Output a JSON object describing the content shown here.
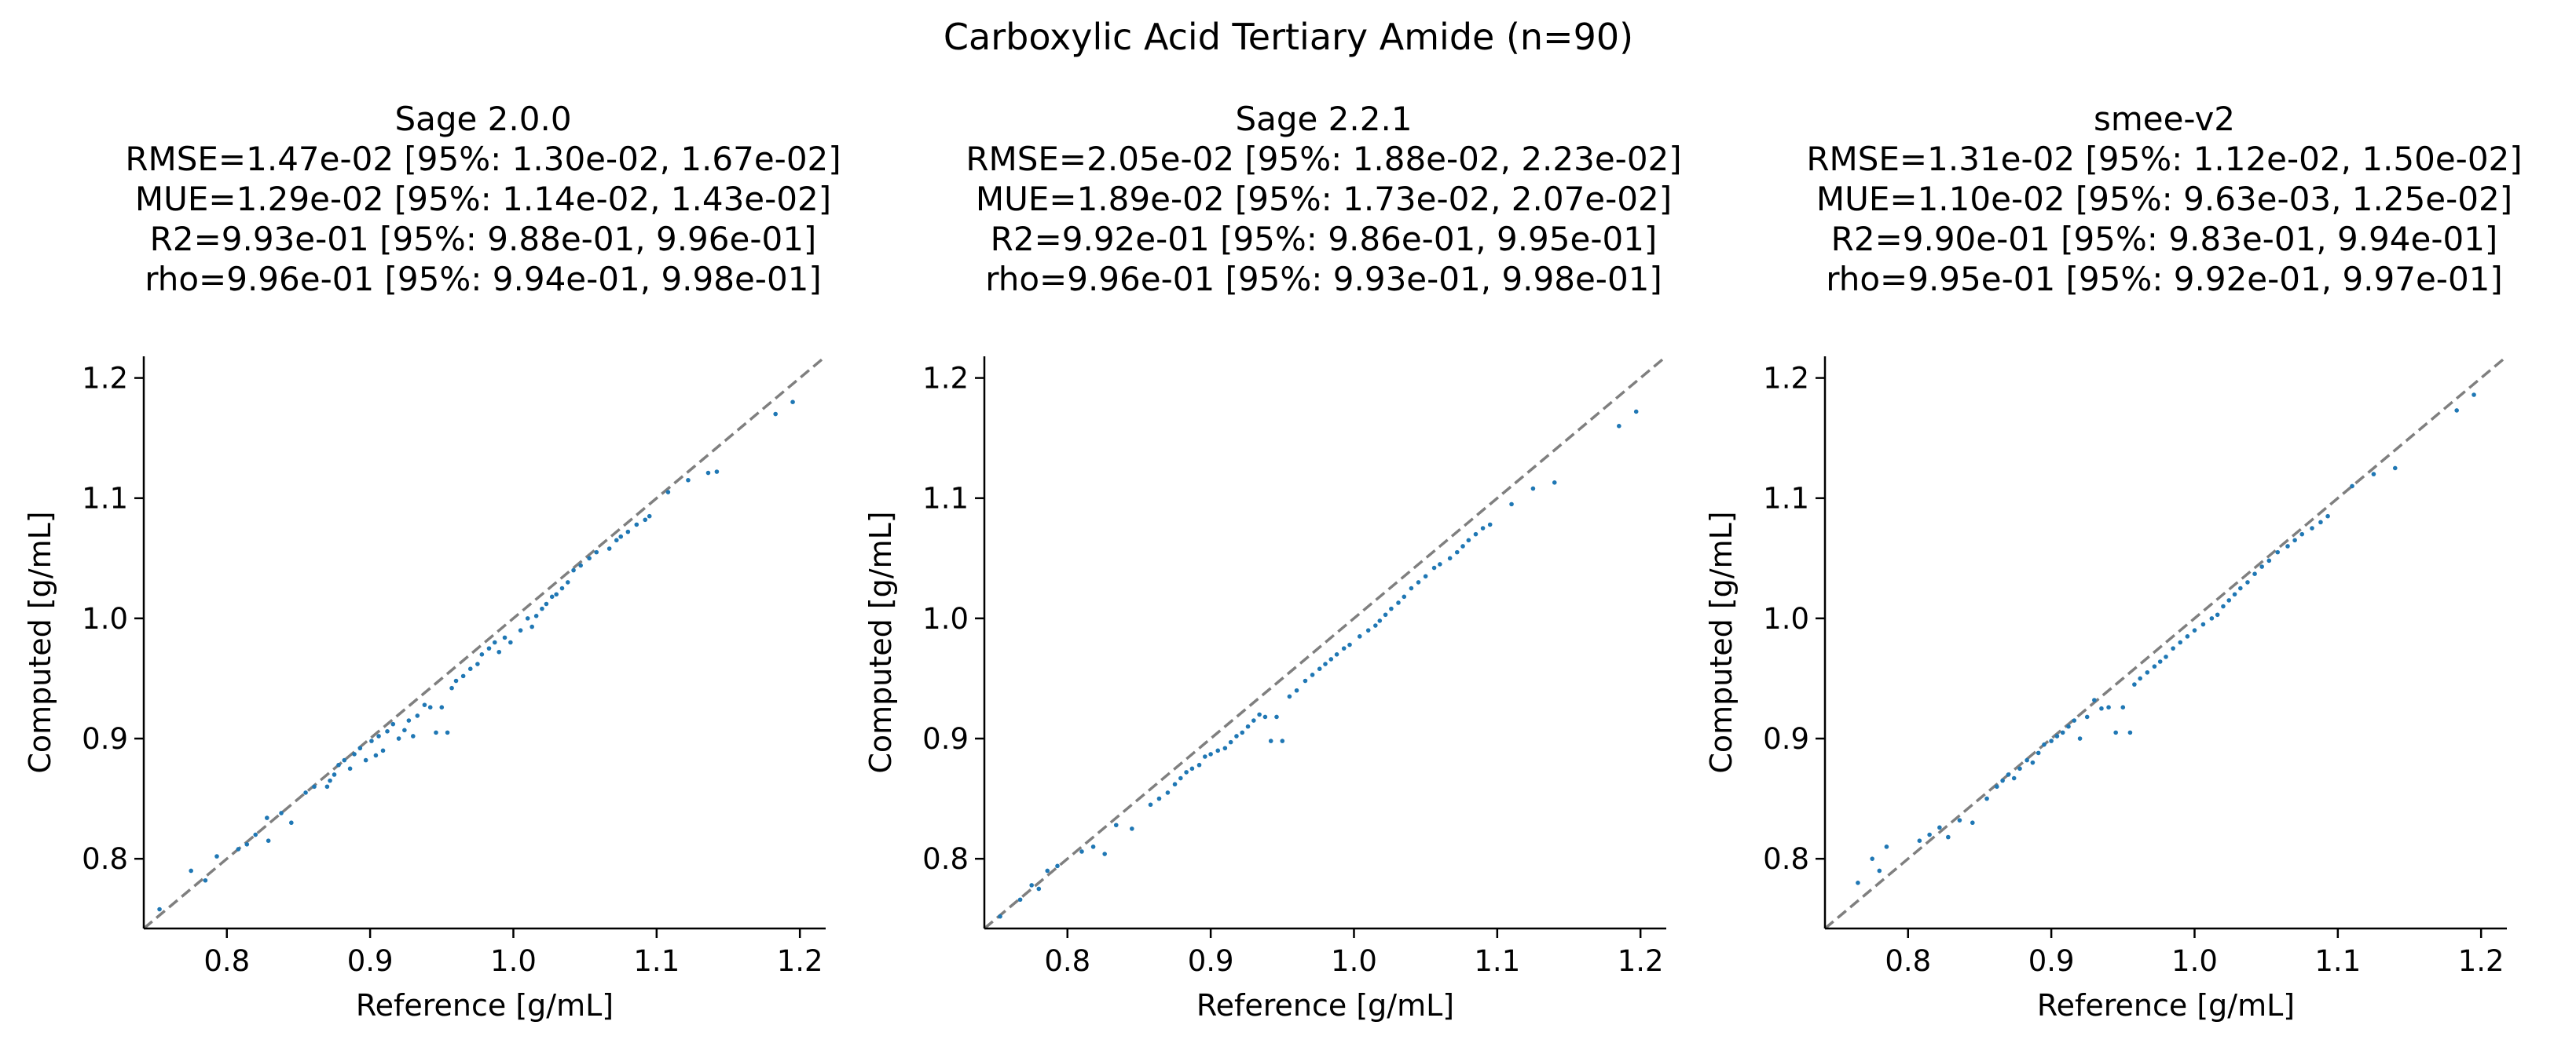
{
  "suptitle": "Carboxylic Acid Tertiary Amide (n=90)",
  "dot_color": "#1f77b4",
  "identity_line_color": "#7f7f7f",
  "chart_data": [
    {
      "type": "scatter",
      "title_lines": [
        "Sage 2.0.0",
        "RMSE=1.47e-02 [95%: 1.30e-02, 1.67e-02]",
        "MUE=1.29e-02 [95%: 1.14e-02, 1.43e-02]",
        "R2=9.93e-01 [95%: 9.88e-01, 9.96e-01]",
        "rho=9.96e-01 [95%: 9.94e-01, 9.98e-01]"
      ],
      "xlabel": "Reference [g/mL]",
      "ylabel": "Computed [g/mL]",
      "xlim": [
        0.742,
        1.218
      ],
      "ylim": [
        0.742,
        1.218
      ],
      "xticks": [
        "0.8",
        "0.9",
        "1.0",
        "1.1",
        "1.2"
      ],
      "yticks": [
        "0.8",
        "0.9",
        "1.0",
        "1.1",
        "1.2"
      ],
      "identity_line": true,
      "grid": false,
      "points": [
        [
          0.753,
          0.758
        ],
        [
          0.775,
          0.79
        ],
        [
          0.785,
          0.782
        ],
        [
          0.793,
          0.802
        ],
        [
          0.808,
          0.808
        ],
        [
          0.814,
          0.812
        ],
        [
          0.82,
          0.82
        ],
        [
          0.828,
          0.834
        ],
        [
          0.829,
          0.815
        ],
        [
          0.838,
          0.838
        ],
        [
          0.845,
          0.83
        ],
        [
          0.855,
          0.855
        ],
        [
          0.861,
          0.86
        ],
        [
          0.87,
          0.86
        ],
        [
          0.872,
          0.865
        ],
        [
          0.875,
          0.87
        ],
        [
          0.878,
          0.878
        ],
        [
          0.882,
          0.882
        ],
        [
          0.886,
          0.875
        ],
        [
          0.889,
          0.887
        ],
        [
          0.893,
          0.892
        ],
        [
          0.897,
          0.882
        ],
        [
          0.901,
          0.898
        ],
        [
          0.904,
          0.886
        ],
        [
          0.906,
          0.902
        ],
        [
          0.909,
          0.89
        ],
        [
          0.912,
          0.906
        ],
        [
          0.916,
          0.912
        ],
        [
          0.92,
          0.9
        ],
        [
          0.924,
          0.907
        ],
        [
          0.927,
          0.915
        ],
        [
          0.93,
          0.902
        ],
        [
          0.933,
          0.919
        ],
        [
          0.938,
          0.928
        ],
        [
          0.942,
          0.926
        ],
        [
          0.946,
          0.905
        ],
        [
          0.95,
          0.926
        ],
        [
          0.954,
          0.905
        ],
        [
          0.957,
          0.942
        ],
        [
          0.96,
          0.948
        ],
        [
          0.965,
          0.952
        ],
        [
          0.97,
          0.958
        ],
        [
          0.975,
          0.962
        ],
        [
          0.978,
          0.97
        ],
        [
          0.983,
          0.975
        ],
        [
          0.987,
          0.98
        ],
        [
          0.99,
          0.972
        ],
        [
          0.994,
          0.984
        ],
        [
          0.998,
          0.98
        ],
        [
          1.005,
          0.99
        ],
        [
          1.01,
          1.0
        ],
        [
          1.013,
          0.993
        ],
        [
          1.016,
          1.002
        ],
        [
          1.02,
          1.008
        ],
        [
          1.023,
          1.012
        ],
        [
          1.027,
          1.018
        ],
        [
          1.03,
          1.02
        ],
        [
          1.034,
          1.025
        ],
        [
          1.038,
          1.03
        ],
        [
          1.042,
          1.04
        ],
        [
          1.047,
          1.044
        ],
        [
          1.053,
          1.05
        ],
        [
          1.058,
          1.055
        ],
        [
          1.067,
          1.058
        ],
        [
          1.072,
          1.065
        ],
        [
          1.075,
          1.068
        ],
        [
          1.08,
          1.072
        ],
        [
          1.086,
          1.078
        ],
        [
          1.092,
          1.082
        ],
        [
          1.095,
          1.085
        ],
        [
          1.108,
          1.105
        ],
        [
          1.122,
          1.115
        ],
        [
          1.136,
          1.121
        ],
        [
          1.142,
          1.122
        ],
        [
          1.183,
          1.17
        ],
        [
          1.195,
          1.18
        ]
      ]
    },
    {
      "type": "scatter",
      "title_lines": [
        "Sage 2.2.1",
        "RMSE=2.05e-02 [95%: 1.88e-02, 2.23e-02]",
        "MUE=1.89e-02 [95%: 1.73e-02, 2.07e-02]",
        "R2=9.92e-01 [95%: 9.86e-01, 9.95e-01]",
        "rho=9.96e-01 [95%: 9.93e-01, 9.98e-01]"
      ],
      "xlabel": "Reference [g/mL]",
      "ylabel": "Computed [g/mL]",
      "xlim": [
        0.742,
        1.218
      ],
      "ylim": [
        0.742,
        1.218
      ],
      "xticks": [
        "0.8",
        "0.9",
        "1.0",
        "1.1",
        "1.2"
      ],
      "yticks": [
        "0.8",
        "0.9",
        "1.0",
        "1.1",
        "1.2"
      ],
      "identity_line": true,
      "grid": false,
      "points": [
        [
          0.753,
          0.752
        ],
        [
          0.767,
          0.766
        ],
        [
          0.775,
          0.778
        ],
        [
          0.78,
          0.775
        ],
        [
          0.786,
          0.79
        ],
        [
          0.793,
          0.794
        ],
        [
          0.81,
          0.806
        ],
        [
          0.818,
          0.81
        ],
        [
          0.826,
          0.804
        ],
        [
          0.834,
          0.828
        ],
        [
          0.845,
          0.825
        ],
        [
          0.858,
          0.845
        ],
        [
          0.864,
          0.85
        ],
        [
          0.87,
          0.855
        ],
        [
          0.875,
          0.862
        ],
        [
          0.879,
          0.867
        ],
        [
          0.883,
          0.872
        ],
        [
          0.887,
          0.875
        ],
        [
          0.892,
          0.878
        ],
        [
          0.896,
          0.885
        ],
        [
          0.9,
          0.887
        ],
        [
          0.905,
          0.89
        ],
        [
          0.91,
          0.892
        ],
        [
          0.914,
          0.897
        ],
        [
          0.918,
          0.902
        ],
        [
          0.922,
          0.905
        ],
        [
          0.926,
          0.91
        ],
        [
          0.93,
          0.915
        ],
        [
          0.934,
          0.92
        ],
        [
          0.938,
          0.918
        ],
        [
          0.942,
          0.898
        ],
        [
          0.946,
          0.918
        ],
        [
          0.95,
          0.898
        ],
        [
          0.955,
          0.935
        ],
        [
          0.96,
          0.94
        ],
        [
          0.966,
          0.948
        ],
        [
          0.971,
          0.953
        ],
        [
          0.976,
          0.958
        ],
        [
          0.98,
          0.962
        ],
        [
          0.984,
          0.966
        ],
        [
          0.988,
          0.97
        ],
        [
          0.993,
          0.975
        ],
        [
          0.997,
          0.978
        ],
        [
          1.004,
          0.985
        ],
        [
          1.01,
          0.99
        ],
        [
          1.015,
          0.994
        ],
        [
          1.018,
          0.998
        ],
        [
          1.022,
          1.003
        ],
        [
          1.026,
          1.008
        ],
        [
          1.031,
          1.013
        ],
        [
          1.035,
          1.018
        ],
        [
          1.04,
          1.025
        ],
        [
          1.045,
          1.03
        ],
        [
          1.05,
          1.035
        ],
        [
          1.056,
          1.042
        ],
        [
          1.06,
          1.045
        ],
        [
          1.067,
          1.05
        ],
        [
          1.072,
          1.055
        ],
        [
          1.076,
          1.06
        ],
        [
          1.08,
          1.065
        ],
        [
          1.085,
          1.07
        ],
        [
          1.09,
          1.075
        ],
        [
          1.095,
          1.078
        ],
        [
          1.11,
          1.095
        ],
        [
          1.125,
          1.108
        ],
        [
          1.14,
          1.113
        ],
        [
          1.185,
          1.16
        ],
        [
          1.197,
          1.172
        ]
      ]
    },
    {
      "type": "scatter",
      "title_lines": [
        "smee-v2",
        "RMSE=1.31e-02 [95%: 1.12e-02, 1.50e-02]",
        "MUE=1.10e-02 [95%: 9.63e-03, 1.25e-02]",
        "R2=9.90e-01 [95%: 9.83e-01, 9.94e-01]",
        "rho=9.95e-01 [95%: 9.92e-01, 9.97e-01]"
      ],
      "xlabel": "Reference [g/mL]",
      "ylabel": "Computed [g/mL]",
      "xlim": [
        0.742,
        1.218
      ],
      "ylim": [
        0.742,
        1.218
      ],
      "xticks": [
        "0.8",
        "0.9",
        "1.0",
        "1.1",
        "1.2"
      ],
      "yticks": [
        "0.8",
        "0.9",
        "1.0",
        "1.1",
        "1.2"
      ],
      "identity_line": true,
      "grid": false,
      "points": [
        [
          0.765,
          0.78
        ],
        [
          0.775,
          0.8
        ],
        [
          0.78,
          0.79
        ],
        [
          0.785,
          0.81
        ],
        [
          0.808,
          0.815
        ],
        [
          0.815,
          0.82
        ],
        [
          0.822,
          0.826
        ],
        [
          0.828,
          0.818
        ],
        [
          0.836,
          0.832
        ],
        [
          0.845,
          0.83
        ],
        [
          0.855,
          0.85
        ],
        [
          0.862,
          0.86
        ],
        [
          0.866,
          0.865
        ],
        [
          0.87,
          0.87
        ],
        [
          0.874,
          0.867
        ],
        [
          0.878,
          0.875
        ],
        [
          0.883,
          0.882
        ],
        [
          0.887,
          0.88
        ],
        [
          0.891,
          0.888
        ],
        [
          0.895,
          0.895
        ],
        [
          0.9,
          0.898
        ],
        [
          0.904,
          0.902
        ],
        [
          0.908,
          0.905
        ],
        [
          0.912,
          0.91
        ],
        [
          0.916,
          0.915
        ],
        [
          0.92,
          0.9
        ],
        [
          0.925,
          0.918
        ],
        [
          0.93,
          0.932
        ],
        [
          0.935,
          0.925
        ],
        [
          0.94,
          0.926
        ],
        [
          0.945,
          0.905
        ],
        [
          0.95,
          0.926
        ],
        [
          0.955,
          0.905
        ],
        [
          0.958,
          0.945
        ],
        [
          0.962,
          0.95
        ],
        [
          0.967,
          0.955
        ],
        [
          0.972,
          0.96
        ],
        [
          0.976,
          0.964
        ],
        [
          0.98,
          0.968
        ],
        [
          0.985,
          0.975
        ],
        [
          0.99,
          0.98
        ],
        [
          0.995,
          0.985
        ],
        [
          1.0,
          0.99
        ],
        [
          1.006,
          0.995
        ],
        [
          1.012,
          1.0
        ],
        [
          1.016,
          1.003
        ],
        [
          1.02,
          1.01
        ],
        [
          1.024,
          1.015
        ],
        [
          1.028,
          1.02
        ],
        [
          1.032,
          1.025
        ],
        [
          1.037,
          1.03
        ],
        [
          1.042,
          1.037
        ],
        [
          1.047,
          1.043
        ],
        [
          1.052,
          1.048
        ],
        [
          1.058,
          1.055
        ],
        [
          1.065,
          1.06
        ],
        [
          1.07,
          1.065
        ],
        [
          1.075,
          1.07
        ],
        [
          1.082,
          1.075
        ],
        [
          1.088,
          1.08
        ],
        [
          1.093,
          1.085
        ],
        [
          1.11,
          1.11
        ],
        [
          1.125,
          1.12
        ],
        [
          1.14,
          1.125
        ],
        [
          1.183,
          1.173
        ],
        [
          1.195,
          1.186
        ]
      ]
    }
  ]
}
